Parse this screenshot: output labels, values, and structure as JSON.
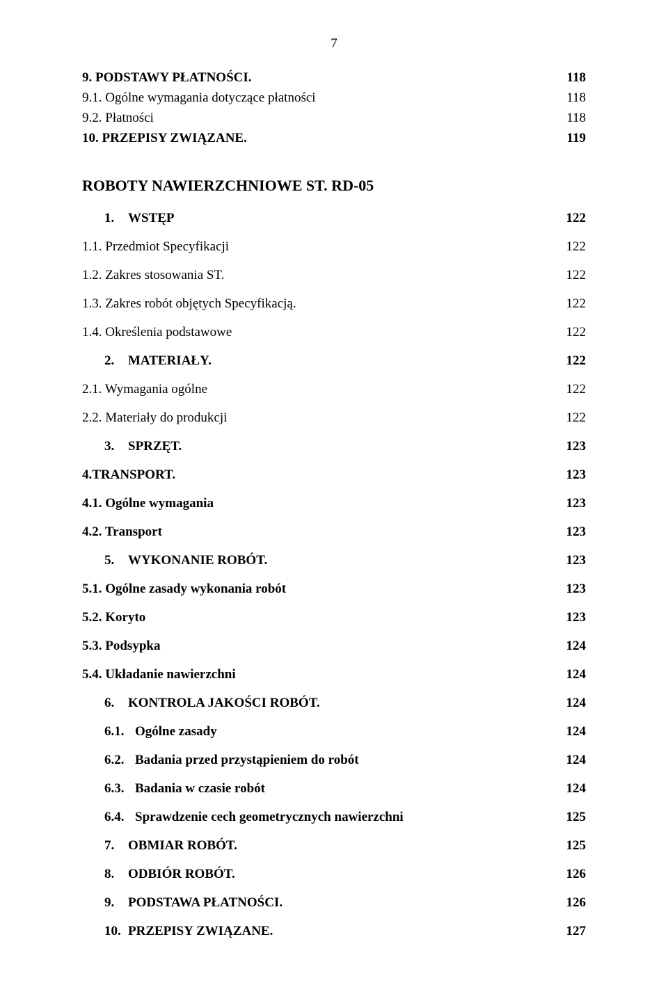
{
  "page_number": "7",
  "block1": [
    {
      "label": "9.   PODSTAWY PŁATNOŚCI.",
      "page": "118",
      "bold": true
    },
    {
      "label": "9.1. Ogólne wymagania dotyczące płatności",
      "page": "118",
      "bold": false
    },
    {
      "label": "9.2. Płatności",
      "page": "118",
      "bold": false
    },
    {
      "label": "10.  PRZEPISY ZWIĄZANE.",
      "page": "119",
      "bold": true
    }
  ],
  "section_title": "ROBOTY NAWIERZCHNIOWE ST. RD-05",
  "block2": [
    {
      "num": "1.",
      "label": "WSTĘP",
      "page": "122",
      "bold": true,
      "numbered": true
    },
    {
      "label": "1.1. Przedmiot Specyfikacji",
      "page": "122",
      "bold": false
    },
    {
      "label": "1.2. Zakres stosowania ST.",
      "page": "122",
      "bold": false
    },
    {
      "label": "1.3. Zakres robót objętych Specyfikacją.",
      "page": "122",
      "bold": false
    },
    {
      "label": "1.4. Określenia podstawowe",
      "page": "122",
      "bold": false
    },
    {
      "num": "2.",
      "label": "MATERIAŁY.",
      "page": "122",
      "bold": true,
      "numbered": true
    },
    {
      "label": "2.1. Wymagania ogólne",
      "page": "122",
      "bold": false
    },
    {
      "label": "2.2. Materiały  do produkcji",
      "page": "122",
      "bold": false
    },
    {
      "num": "3.",
      "label": "SPRZĘT.",
      "page": "123",
      "bold": true,
      "numbered": true
    },
    {
      "label": "4.TRANSPORT.",
      "page": "123",
      "bold": true
    },
    {
      "label": "4.1. Ogólne wymagania",
      "page": "123",
      "bold": true
    },
    {
      "label": "4.2. Transport",
      "page": "123",
      "bold": true
    },
    {
      "num": "5.",
      "label": "WYKONANIE ROBÓT.",
      "page": "123",
      "bold": true,
      "numbered": true
    },
    {
      "label": "5.1. Ogólne zasady wykonania robót",
      "page": "123",
      "bold": true
    },
    {
      "label": "5.2. Koryto",
      "page": "123",
      "bold": true
    },
    {
      "label": "5.3. Podsypka",
      "page": "124",
      "bold": true
    },
    {
      "label": "5.4. Układanie nawierzchni",
      "page": "124",
      "bold": true
    },
    {
      "num": "6.",
      "label": "KONTROLA JAKOŚCI ROBÓT.",
      "page": "124",
      "bold": true,
      "numbered": true
    },
    {
      "num": "6.1.",
      "label": "Ogólne zasady",
      "page": "124",
      "bold": true,
      "numbered": true
    },
    {
      "num": "6.2.",
      "label": "Badania przed przystąpieniem do robót",
      "page": "124",
      "bold": true,
      "numbered": true
    },
    {
      "num": "6.3.",
      "label": "Badania w czasie robót",
      "page": "124",
      "bold": true,
      "numbered": true
    },
    {
      "num": "6.4.",
      "label": "Sprawdzenie cech geometrycznych nawierzchni",
      "page": "125",
      "bold": true,
      "numbered": true
    },
    {
      "num": "7.",
      "label": "OBMIAR ROBÓT.",
      "page": "125",
      "bold": true,
      "numbered": true
    },
    {
      "num": "8.",
      "label": "ODBIÓR ROBÓT.",
      "page": "126",
      "bold": true,
      "numbered": true
    },
    {
      "num": "9.",
      "label": "PODSTAWA PŁATNOŚCI.",
      "page": "126",
      "bold": true,
      "numbered": true
    },
    {
      "num": "10.",
      "label": "PRZEPISY ZWIĄZANE.",
      "page": "127",
      "bold": true,
      "numbered": true
    }
  ]
}
